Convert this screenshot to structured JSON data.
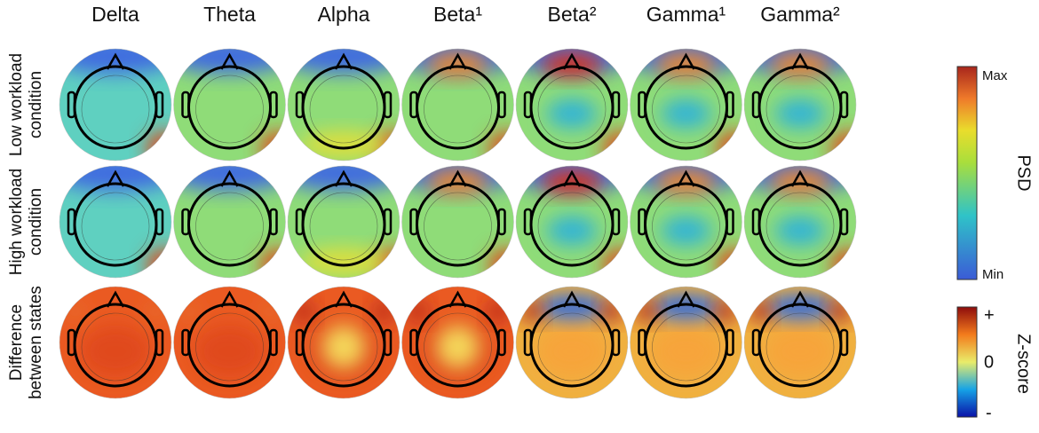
{
  "columns": [
    "Delta",
    "Theta",
    "Alpha",
    "Beta¹",
    "Beta²",
    "Gamma¹",
    "Gamma²"
  ],
  "rows": [
    [
      "Low workload",
      "condition"
    ],
    [
      "High workload",
      "condition"
    ],
    [
      "Difference",
      "between states"
    ]
  ],
  "psd_colorbar": {
    "title": "PSD",
    "max_label": "Max",
    "min_label": "Min"
  },
  "zscore_colorbar": {
    "title": "Z-score",
    "plus_label": "+",
    "zero_label": "0",
    "minus_label": "-"
  }
}
